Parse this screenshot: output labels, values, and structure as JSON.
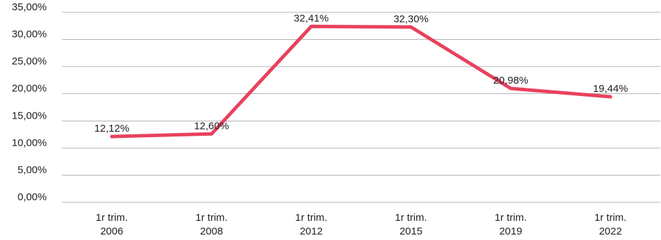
{
  "chart_data": {
    "type": "line",
    "title": "",
    "xlabel": "",
    "ylabel": "",
    "categories": [
      [
        "1r trim.",
        "2006"
      ],
      [
        "1r trim.",
        "2008"
      ],
      [
        "1r trim.",
        "2012"
      ],
      [
        "1r trim.",
        "2015"
      ],
      [
        "1r trim.",
        "2019"
      ],
      [
        "1r trim.",
        "2022"
      ]
    ],
    "series": [
      {
        "values": [
          12.12,
          12.6,
          32.41,
          32.3,
          20.98,
          19.44
        ],
        "labels": [
          "12,12%",
          "12,60%",
          "32,41%",
          "32,30%",
          "20,98%",
          "19,44%"
        ],
        "color": "#e8415d"
      }
    ],
    "ylim": [
      0,
      35
    ],
    "yticks": [
      0,
      5,
      10,
      15,
      20,
      25,
      30,
      35
    ],
    "ytick_labels": [
      "0,00%",
      "5,00%",
      "10,00%",
      "15,00%",
      "20,00%",
      "25,00%",
      "30,00%",
      "35,00%"
    ],
    "grid": true,
    "grid_color": "#b3b3b3",
    "legend": "none"
  }
}
